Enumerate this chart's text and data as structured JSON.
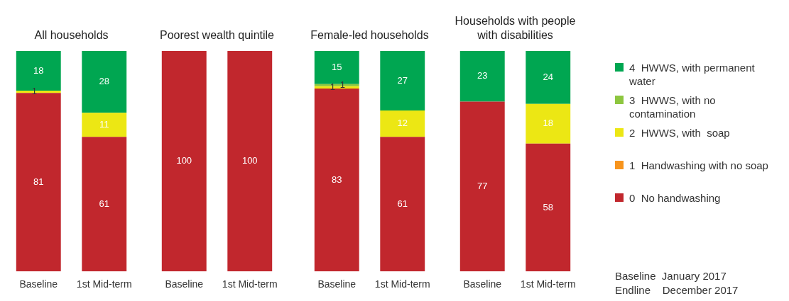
{
  "chart_data": [
    {
      "type": "bar",
      "title": "All households",
      "categories": [
        "Baseline",
        "1st Mid-term"
      ],
      "stacked": true,
      "data_labels": true,
      "legend": "right",
      "series": [
        {
          "name": "0  No handwashing",
          "color": "#c1272d",
          "values": [
            81,
            61
          ]
        },
        {
          "name": "1  Handwashing with no soap",
          "color": "#f7941d",
          "values": [
            null,
            null
          ]
        },
        {
          "name": "2  HWWS, with  soap",
          "color": "#ece714",
          "values": [
            1,
            11
          ]
        },
        {
          "name": "3  HWWS, with no contamination",
          "color": "#8dc63f",
          "values": [
            null,
            null
          ]
        },
        {
          "name": "4  HWWS, with permanent water",
          "color": "#00a651",
          "values": [
            18,
            28
          ]
        }
      ]
    },
    {
      "type": "bar",
      "title": "Poorest wealth quintile",
      "categories": [
        "Baseline",
        "1st Mid-term"
      ],
      "stacked": true,
      "data_labels": true,
      "series": [
        {
          "color": "#c1272d",
          "values": [
            100,
            100
          ]
        }
      ]
    },
    {
      "type": "bar",
      "title": "Female-led households",
      "categories": [
        "Baseline",
        "1st Mid-term"
      ],
      "stacked": true,
      "data_labels": true,
      "series": [
        {
          "color": "#c1272d",
          "values": [
            83,
            61
          ]
        },
        {
          "color": "#ece714",
          "values": [
            1,
            12
          ]
        },
        {
          "color": "#8dc63f",
          "values": [
            1,
            null
          ]
        },
        {
          "color": "#00a651",
          "values": [
            15,
            27
          ]
        }
      ]
    },
    {
      "type": "bar",
      "title": "Households with people with disabilities",
      "categories": [
        "Baseline",
        "1st Mid-term"
      ],
      "stacked": true,
      "data_labels": true,
      "annotations": [
        "Baseline  January 2017",
        "Endline    December 2017"
      ],
      "series": [
        {
          "color": "#c1272d",
          "values": [
            77,
            58
          ]
        },
        {
          "color": "#ece714",
          "values": [
            null,
            18
          ]
        },
        {
          "color": "#00a651",
          "values": [
            23,
            24
          ]
        }
      ]
    }
  ]
}
